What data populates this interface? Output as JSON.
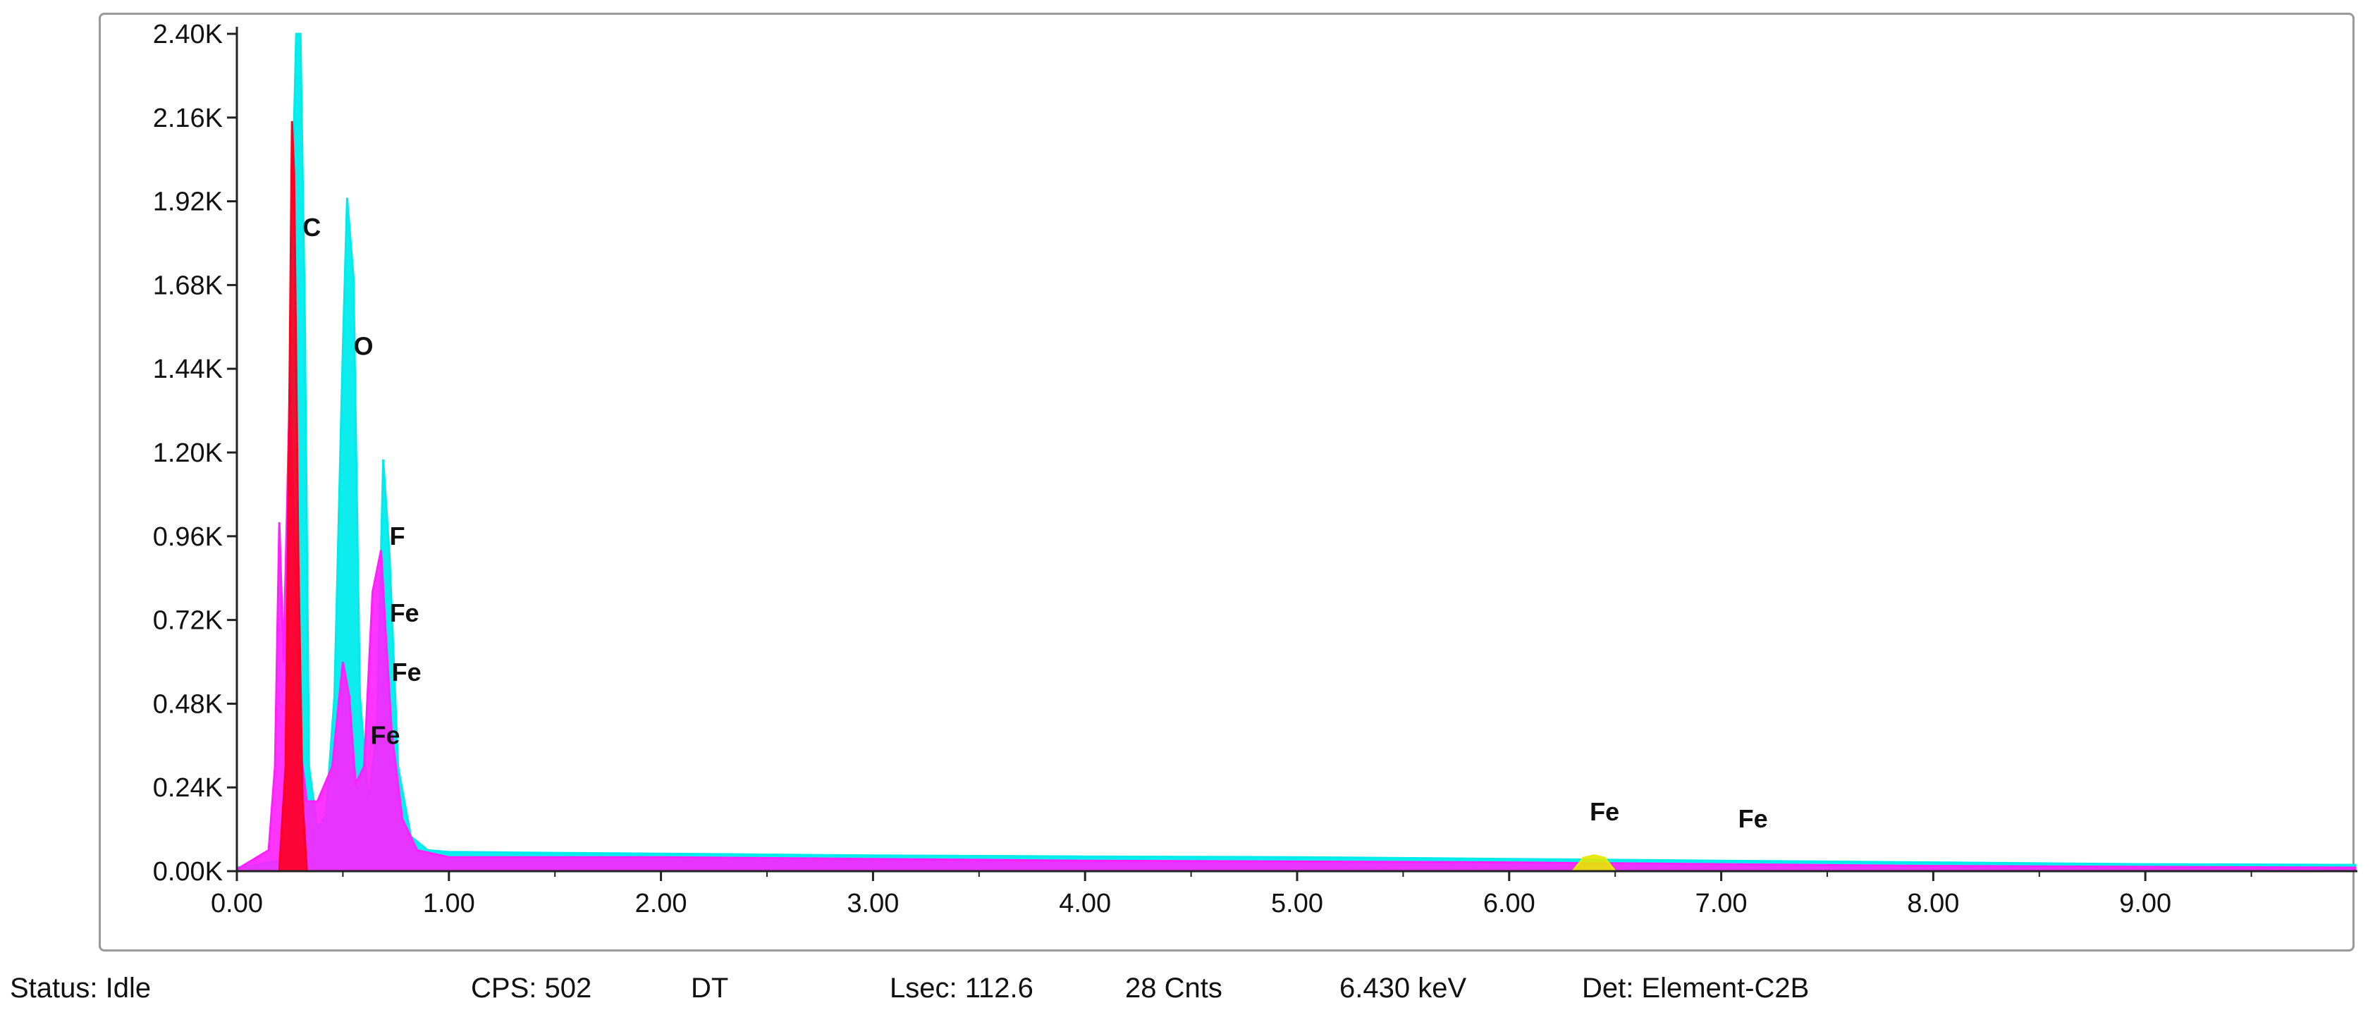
{
  "chart_data": {
    "type": "area",
    "title": "",
    "xlabel": "",
    "ylabel": "",
    "xlim": [
      0,
      10
    ],
    "ylim": [
      0,
      2400
    ],
    "x_ticks": [
      "0.00",
      "1.00",
      "2.00",
      "3.00",
      "4.00",
      "5.00",
      "6.00",
      "7.00",
      "8.00",
      "9.00"
    ],
    "y_ticks": [
      "0.00K",
      "0.24K",
      "0.48K",
      "0.72K",
      "0.96K",
      "1.20K",
      "1.44K",
      "1.68K",
      "1.92K",
      "2.16K",
      "2.40K"
    ],
    "grid": false,
    "legend": "none",
    "series": [
      {
        "color": "#00ecec",
        "x": [
          0.0,
          0.2,
          0.24,
          0.26,
          0.28,
          0.3,
          0.32,
          0.34,
          0.38,
          0.42,
          0.46,
          0.5,
          0.52,
          0.55,
          0.58,
          0.62,
          0.66,
          0.69,
          0.72,
          0.76,
          0.82,
          0.9,
          1.0,
          2.0,
          3.0,
          4.0,
          5.0,
          6.0,
          7.0,
          8.0,
          9.0,
          9.99
        ],
        "y": [
          10,
          30,
          400,
          1900,
          2400,
          2400,
          1600,
          300,
          120,
          160,
          500,
          1500,
          1930,
          1700,
          500,
          200,
          400,
          1180,
          900,
          300,
          100,
          60,
          55,
          50,
          45,
          42,
          40,
          35,
          30,
          25,
          20,
          18
        ]
      },
      {
        "color": "#ff1fff",
        "x": [
          0.0,
          0.15,
          0.18,
          0.2,
          0.22,
          0.25,
          0.28,
          0.3,
          0.33,
          0.38,
          0.45,
          0.5,
          0.53,
          0.56,
          0.6,
          0.64,
          0.68,
          0.7,
          0.73,
          0.78,
          0.85,
          1.0,
          2.0,
          4.0,
          6.0,
          8.0,
          9.99
        ],
        "y": [
          5,
          60,
          300,
          1000,
          600,
          1400,
          800,
          350,
          200,
          200,
          300,
          600,
          500,
          250,
          300,
          800,
          920,
          700,
          400,
          150,
          60,
          40,
          40,
          30,
          25,
          15,
          10
        ]
      },
      {
        "color": "#ff0020",
        "x": [
          0.2,
          0.23,
          0.25,
          0.26,
          0.27,
          0.29,
          0.31,
          0.33
        ],
        "y": [
          0,
          300,
          1500,
          2150,
          2000,
          900,
          200,
          0
        ]
      },
      {
        "color": "#e8e800",
        "x": [
          6.3,
          6.35,
          6.4,
          6.45,
          6.5
        ],
        "y": [
          0,
          38,
          45,
          38,
          0
        ]
      }
    ],
    "annotations": [
      {
        "text": "C",
        "x": 0.31,
        "y": 1820
      },
      {
        "text": "O",
        "x": 0.55,
        "y": 1480
      },
      {
        "text": "F",
        "x": 0.72,
        "y": 935
      },
      {
        "text": "Fe",
        "x": 0.72,
        "y": 715
      },
      {
        "text": "Fe",
        "x": 0.73,
        "y": 545
      },
      {
        "text": "Fe",
        "x": 0.63,
        "y": 365
      },
      {
        "text": "Fe",
        "x": 6.38,
        "y": 145
      },
      {
        "text": "Fe",
        "x": 7.08,
        "y": 125
      }
    ]
  },
  "status": {
    "status": "Status: Idle",
    "cps": "CPS: 502",
    "dt": "DT",
    "lsec": "Lsec: 112.6",
    "cnts": "28 Cnts",
    "kev": "6.430 keV",
    "det": "Det: Element-C2B"
  }
}
